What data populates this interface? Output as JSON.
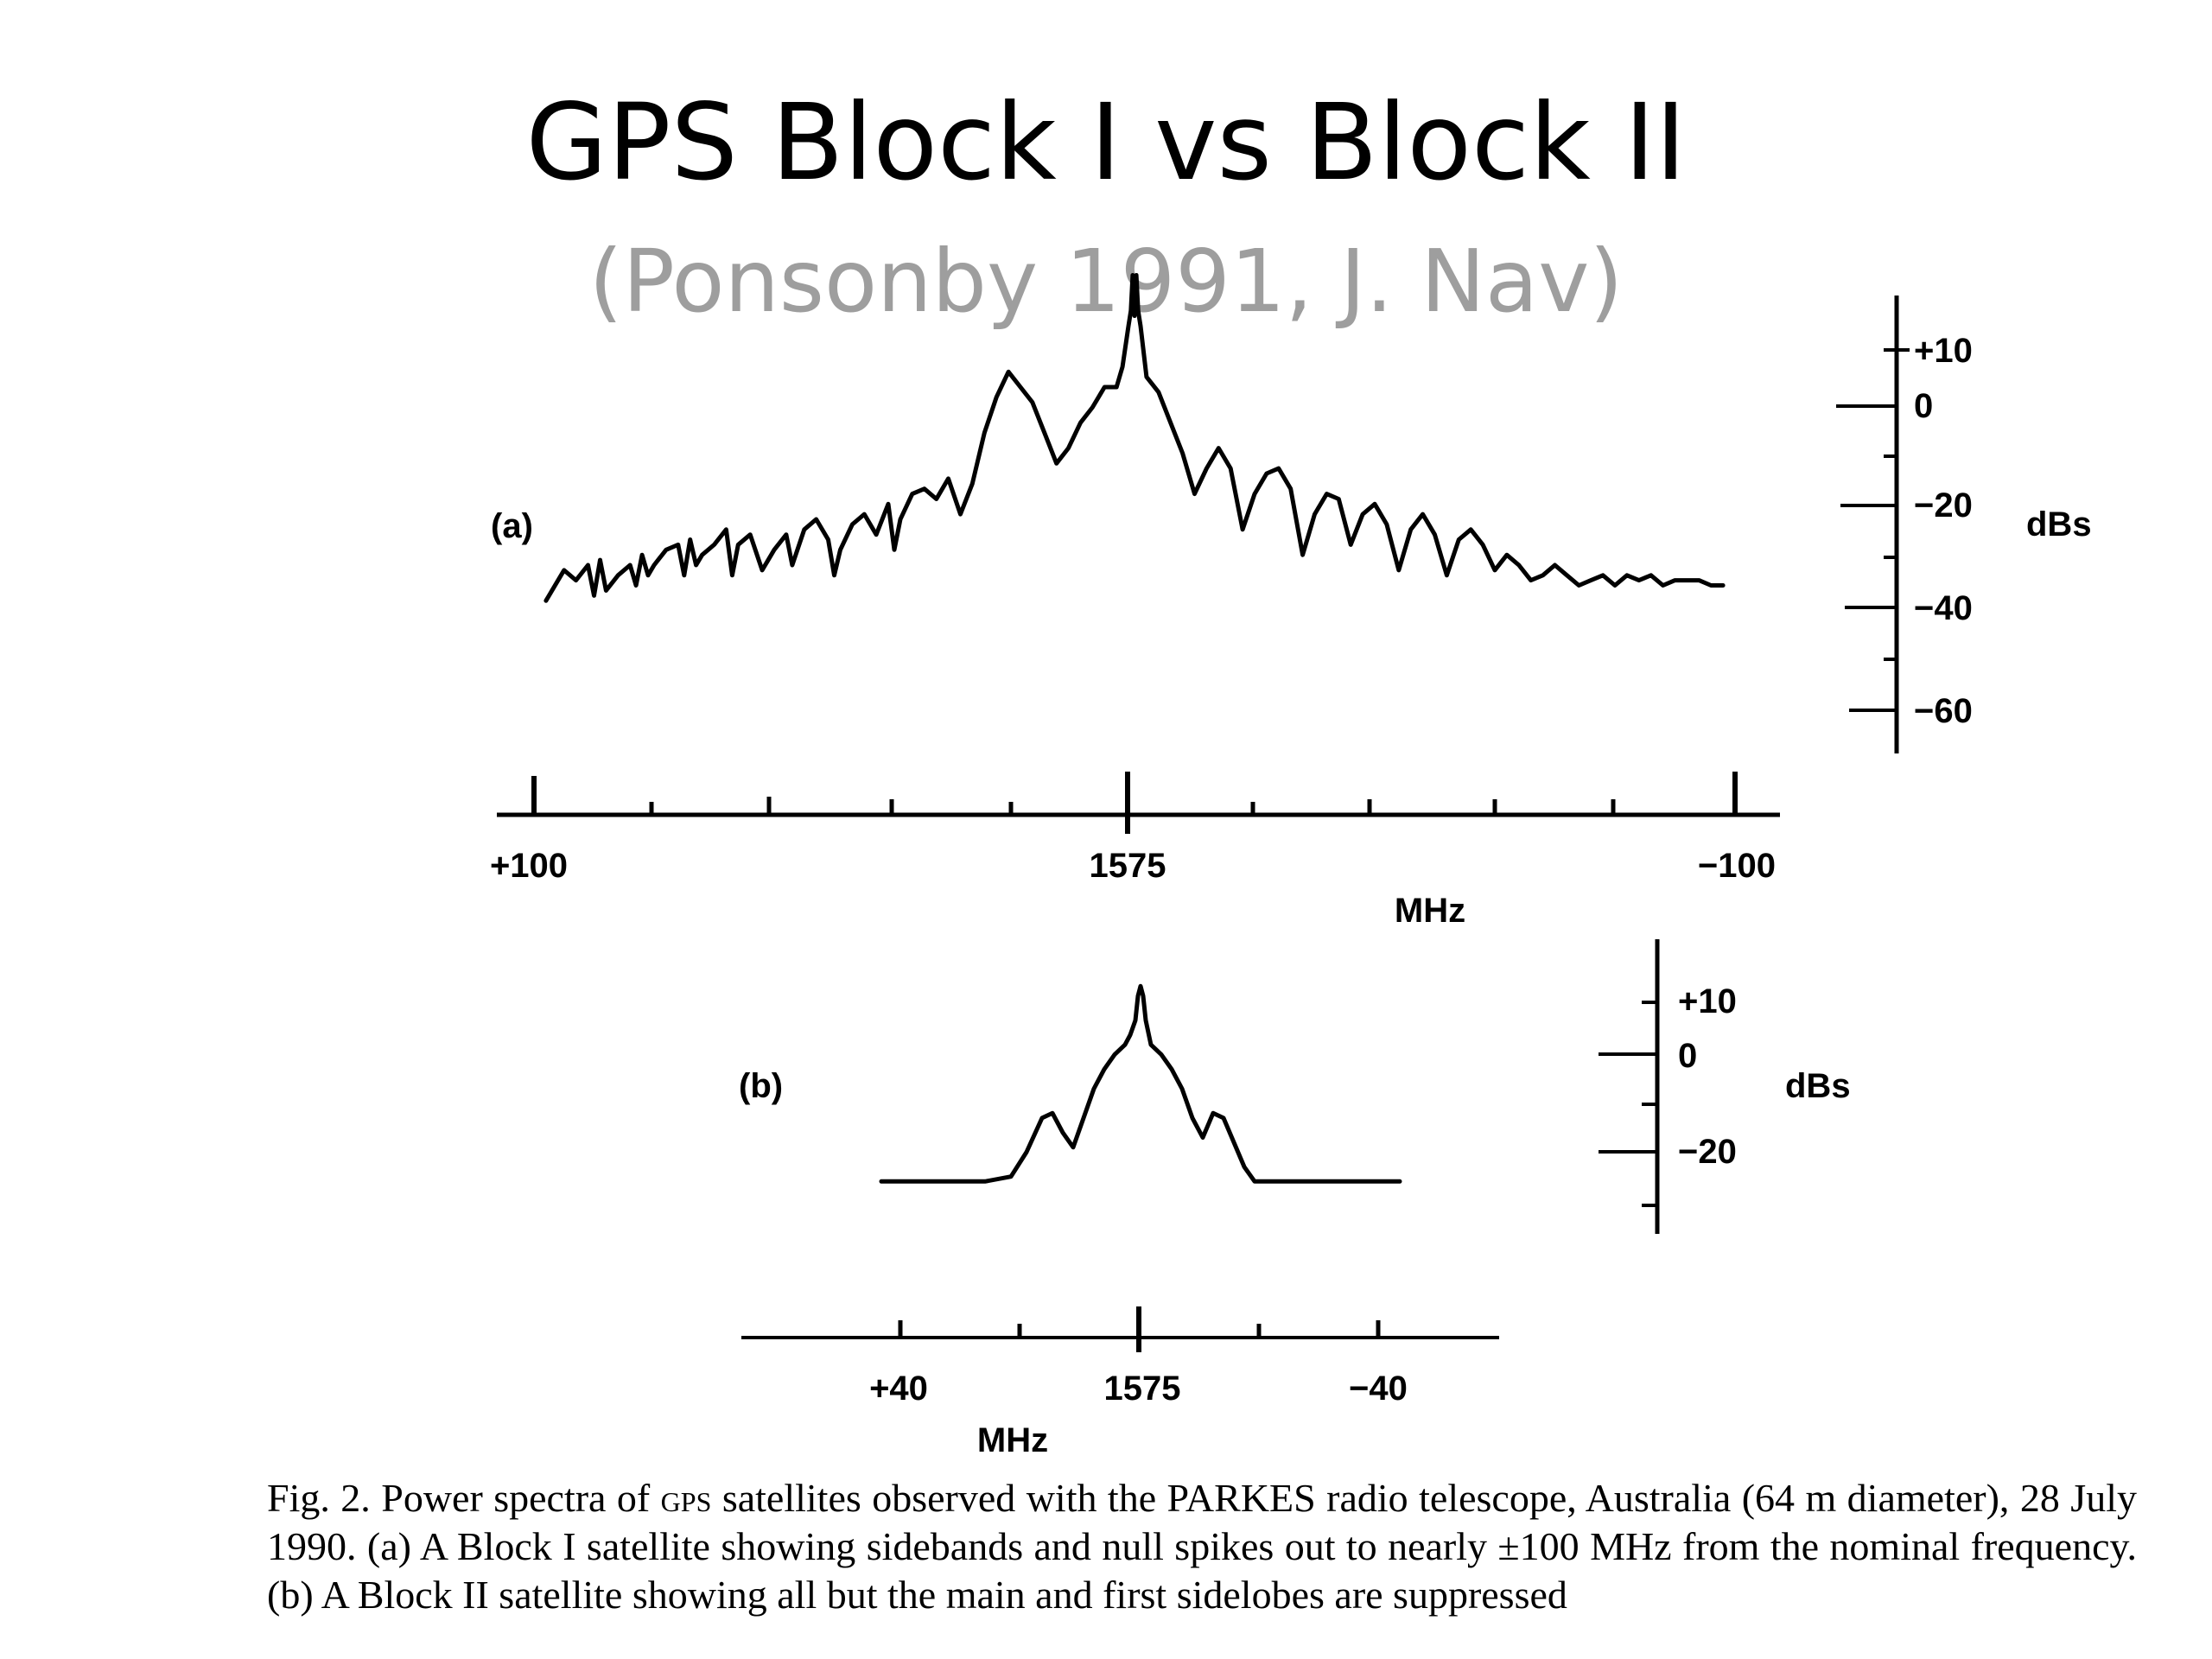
{
  "slide": {
    "title": "GPS Block I vs Block II",
    "subtitle": "(Ponsonby 1991, J. Nav)"
  },
  "colors": {
    "title": "#000000",
    "subtitle": "#9e9e9e",
    "trace": "#000000"
  },
  "caption": "Fig. 2. Power spectra of GPS satellites observed with the PARKES radio telescope, Australia (64 m diameter), 28 July 1990. (a) A Block I satellite showing sidebands and null spikes out to nearly ±100 MHz from the nominal frequency. (b) A Block II satellite showing all but the main and first sidelobes are suppressed",
  "chart_data": [
    {
      "type": "line",
      "panel_label": "(a)",
      "x_tick_labels": [
        "+100",
        "1575",
        "−100"
      ],
      "x_unit_label": "MHz",
      "x_range": [
        100,
        -100
      ],
      "y_tick_labels": [
        "+10",
        "0",
        "−20",
        "−40",
        "−60"
      ],
      "y_unit_label": "dBs",
      "y_range": [
        -66,
        22
      ],
      "grid": false,
      "series": [
        {
          "x": [
            98,
            95,
            93,
            91,
            90,
            89,
            88,
            86,
            84,
            83,
            82,
            81,
            80,
            78,
            76,
            75,
            74,
            73,
            72,
            70,
            68,
            67,
            66,
            64,
            62,
            60,
            58,
            57,
            55,
            53,
            51,
            50,
            49,
            47,
            45,
            43,
            41,
            40,
            39,
            37,
            35,
            33,
            31,
            29,
            27,
            25,
            23,
            21,
            19,
            17,
            15,
            13,
            11,
            9,
            7,
            5,
            3,
            2,
            1,
            0.6,
            0.3,
            0,
            -0.3,
            -0.6,
            -1,
            -2,
            -4,
            -6,
            -8,
            -10,
            -12,
            -14,
            -16,
            -18,
            -20,
            -22,
            -24,
            -26,
            -28,
            -30,
            -32,
            -34,
            -36,
            -38,
            -40,
            -42,
            -44,
            -46,
            -48,
            -50,
            -52,
            -54,
            -56,
            -58,
            -60,
            -62,
            -64,
            -66,
            -68,
            -70,
            -72,
            -74,
            -76,
            -78,
            -80,
            -82,
            -84,
            -86,
            -88,
            -90,
            -92,
            -94,
            -96,
            -98
          ],
          "y": [
            -38,
            -32,
            -34,
            -31,
            -37,
            -30,
            -36,
            -33,
            -31,
            -35,
            -29,
            -33,
            -31,
            -28,
            -27,
            -33,
            -26,
            -31,
            -29,
            -27,
            -24,
            -33,
            -27,
            -25,
            -32,
            -28,
            -25,
            -31,
            -24,
            -22,
            -26,
            -33,
            -28,
            -23,
            -21,
            -25,
            -19,
            -28,
            -22,
            -17,
            -16,
            -18,
            -14,
            -21,
            -15,
            -5,
            2,
            7,
            4,
            1,
            -5,
            -11,
            -8,
            -3,
            0,
            4,
            4,
            8,
            16,
            19,
            26,
            18,
            26,
            19,
            16,
            6,
            3,
            -3,
            -9,
            -17,
            -12,
            -8,
            -12,
            -24,
            -17,
            -13,
            -12,
            -16,
            -29,
            -21,
            -17,
            -18,
            -27,
            -21,
            -19,
            -23,
            -32,
            -24,
            -21,
            -25,
            -33,
            -26,
            -24,
            -27,
            -32,
            -29,
            -31,
            -34,
            -33,
            -31,
            -33,
            -35,
            -34,
            -33,
            -35,
            -33,
            -34,
            -33,
            -35,
            -34,
            -34,
            -34,
            -35,
            -35
          ]
        }
      ]
    },
    {
      "type": "line",
      "panel_label": "(b)",
      "x_tick_labels": [
        "+40",
        "1575",
        "−40"
      ],
      "x_unit_label": "MHz",
      "x_range": [
        70,
        -70
      ],
      "y_tick_labels": [
        "+10",
        "0",
        "−20"
      ],
      "y_unit_label": "dBs",
      "y_range": [
        -27,
        16
      ],
      "grid": false,
      "series": [
        {
          "x": [
            50,
            40,
            30,
            25,
            22,
            19,
            17,
            15,
            13,
            11,
            9,
            7,
            5,
            3,
            2,
            1,
            0.5,
            0,
            -0.5,
            -1,
            -2,
            -4,
            -6,
            -8,
            -10,
            -12,
            -14,
            -16,
            -18,
            -20,
            -22,
            -24,
            -30,
            -40,
            -50
          ],
          "y": [
            -26,
            -26,
            -26,
            -25,
            -20,
            -13,
            -12,
            -16,
            -19,
            -13,
            -7,
            -3,
            0,
            2,
            4,
            7,
            12,
            14,
            12,
            7,
            2,
            0,
            -3,
            -7,
            -13,
            -17,
            -12,
            -13,
            -18,
            -23,
            -26,
            -26,
            -26,
            -26,
            -26
          ]
        }
      ]
    }
  ]
}
